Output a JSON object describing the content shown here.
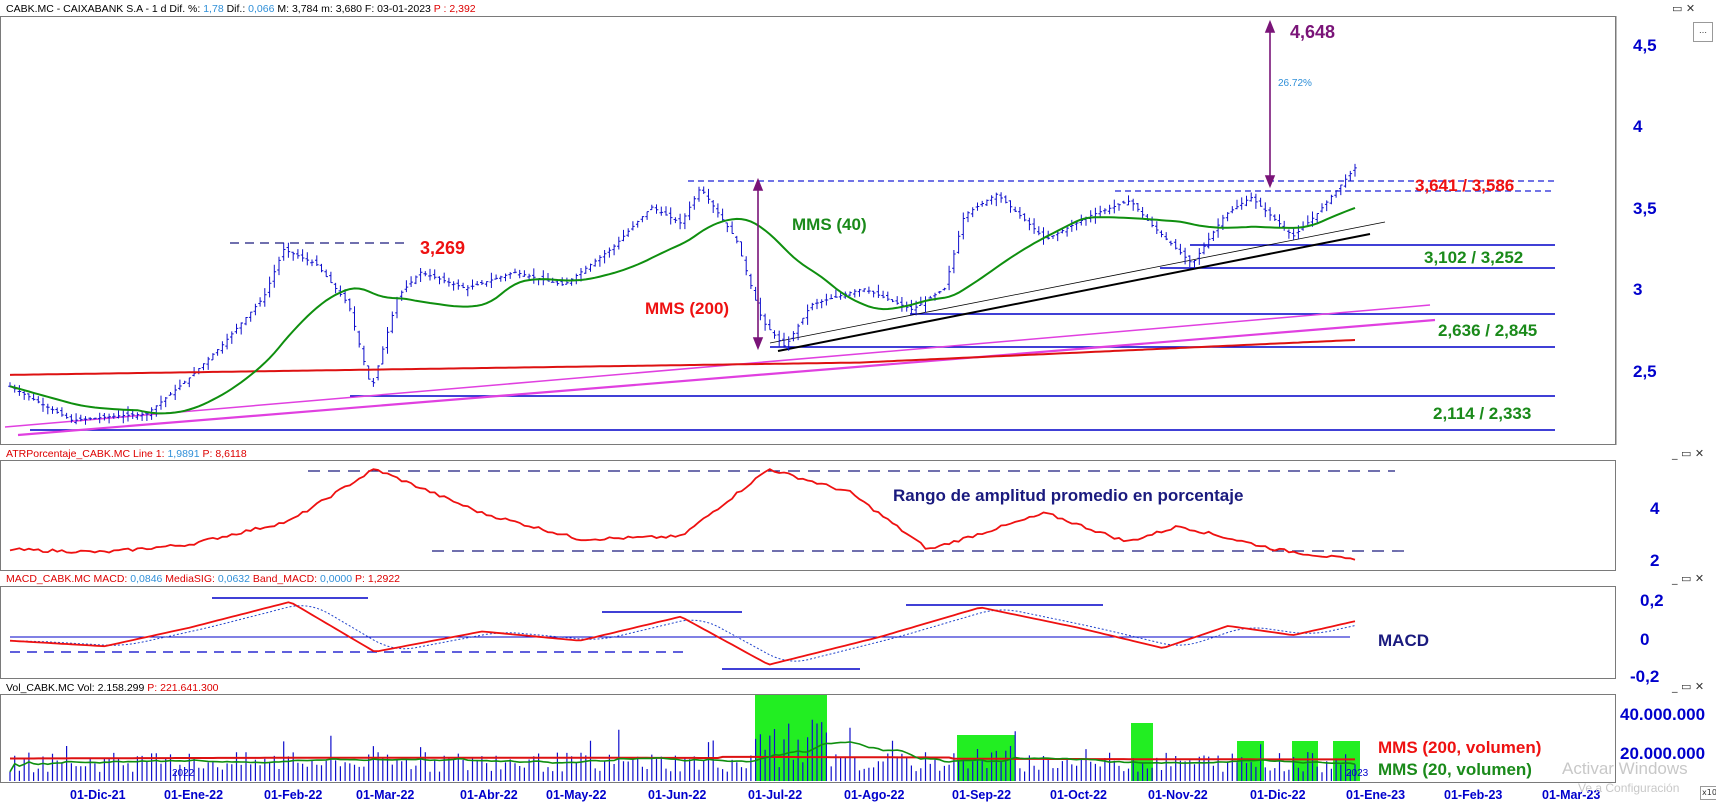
{
  "panels": {
    "price": {
      "header": [
        {
          "text": "CABK.MC - CAIXABANK S.A -  1 d  Dif. %: ",
          "color": "#000000"
        },
        {
          "text": "1,78",
          "color": "#2f8fd8"
        },
        {
          "text": "  Dif.: ",
          "color": "#000000"
        },
        {
          "text": "0,066",
          "color": "#2f8fd8"
        },
        {
          "text": "  M: 3,784  m: 3,680  F: 03-01-2023  ",
          "color": "#000000"
        },
        {
          "text": "P : 2,392",
          "color": "#dd0000"
        }
      ],
      "ticks": [
        "4,5",
        "4",
        "3,5",
        "3",
        "2,5"
      ],
      "labels": {
        "target": "4,648",
        "target_pct": "26.72%",
        "level_3269": "3,269",
        "mms40": "MMS (40)",
        "mms200": "MMS (200)",
        "zone1": "3,641 / 3,586",
        "zone2": "3,102 / 3,252",
        "zone3": "2,636 / 2,845",
        "zone4": "2,114 / 2,333"
      }
    },
    "atr": {
      "header": [
        {
          "text": "ATRPorcentaje_CABK.MC  Line 1: ",
          "color": "#dd0000"
        },
        {
          "text": "1,9891",
          "color": "#2f8fd8"
        },
        {
          "text": "  P: 8,6118",
          "color": "#dd0000"
        }
      ],
      "ticks": [
        "4",
        "2"
      ],
      "annotation": "Rango de amplitud promedio en porcentaje"
    },
    "macd": {
      "header": [
        {
          "text": "MACD_CABK.MC  MACD: ",
          "color": "#dd0000"
        },
        {
          "text": "0,0846",
          "color": "#2f8fd8"
        },
        {
          "text": "  MediaSIG: ",
          "color": "#dd0000"
        },
        {
          "text": "0,0632",
          "color": "#2f8fd8"
        },
        {
          "text": "  Band_MACD: ",
          "color": "#dd0000"
        },
        {
          "text": "0,0000",
          "color": "#2f8fd8"
        },
        {
          "text": "  P: 1,2922",
          "color": "#dd0000"
        }
      ],
      "ticks": [
        "0,2",
        "0",
        "-0,2"
      ],
      "annotation": "MACD"
    },
    "volume": {
      "header": [
        {
          "text": "Vol_CABK.MC  Vol: 2.158.299  ",
          "color": "#000000"
        },
        {
          "text": "P: 221.641.300",
          "color": "#dd0000"
        }
      ],
      "ticks": [
        "40.000.000",
        "20.000.000"
      ],
      "mms200_label": "MMS (200, volumen)",
      "mms20_label": "MMS (20, volumen)"
    }
  },
  "x_axis": {
    "labels": [
      "01-Dic-21",
      "01-Ene-22",
      "01-Feb-22",
      "01-Mar-22",
      "01-Abr-22",
      "01-May-22",
      "01-Jun-22",
      "01-Jul-22",
      "01-Ago-22",
      "01-Sep-22",
      "01-Oct-22",
      "01-Nov-22",
      "01-Dic-22",
      "01-Ene-23",
      "01-Feb-23",
      "01-Mar-23"
    ],
    "small_labels": [
      "2022",
      "2023"
    ]
  },
  "watermark": {
    "line1": "Activar Windows",
    "line2": "Ve a Configuración"
  },
  "chart_data": [
    {
      "type": "candlestick",
      "symbol": "CABK.MC",
      "name": "CAIXABANK S.A",
      "timeframe": "1 d",
      "y_ticks": [
        2.5,
        3,
        3.5,
        4,
        4.5
      ],
      "approx_path": [
        [
          "2021-11-16",
          2.4
        ],
        [
          "2021-11-25",
          2.3
        ],
        [
          "2021-12-05",
          2.19
        ],
        [
          "2021-12-20",
          2.22
        ],
        [
          "2021-12-28",
          2.23
        ],
        [
          "2022-01-10",
          2.45
        ],
        [
          "2022-01-20",
          2.65
        ],
        [
          "2022-02-02",
          2.95
        ],
        [
          "2022-02-08",
          3.24
        ],
        [
          "2022-02-18",
          3.15
        ],
        [
          "2022-02-28",
          2.9
        ],
        [
          "2022-03-07",
          2.38
        ],
        [
          "2022-03-15",
          2.95
        ],
        [
          "2022-03-22",
          3.1
        ],
        [
          "2022-04-05",
          3.0
        ],
        [
          "2022-04-20",
          3.1
        ],
        [
          "2022-05-05",
          3.02
        ],
        [
          "2022-05-20",
          3.25
        ],
        [
          "2022-06-01",
          3.5
        ],
        [
          "2022-06-10",
          3.4
        ],
        [
          "2022-06-16",
          3.62
        ],
        [
          "2022-06-27",
          3.3
        ],
        [
          "2022-07-05",
          2.8
        ],
        [
          "2022-07-12",
          2.64
        ],
        [
          "2022-07-20",
          2.9
        ],
        [
          "2022-08-05",
          3.0
        ],
        [
          "2022-08-20",
          2.87
        ],
        [
          "2022-08-30",
          3.0
        ],
        [
          "2022-09-05",
          3.45
        ],
        [
          "2022-09-15",
          3.58
        ],
        [
          "2022-09-30",
          3.3
        ],
        [
          "2022-10-14",
          3.45
        ],
        [
          "2022-10-26",
          3.54
        ],
        [
          "2022-11-01",
          3.4
        ],
        [
          "2022-11-14",
          3.15
        ],
        [
          "2022-11-24",
          3.45
        ],
        [
          "2022-12-02",
          3.56
        ],
        [
          "2022-12-15",
          3.32
        ],
        [
          "2022-12-22",
          3.45
        ],
        [
          "2023-01-03",
          3.74
        ]
      ],
      "mms40_label": "MMS (40)",
      "mms200_label": "MMS (200)",
      "levels": [
        3.641,
        3.586,
        3.269,
        3.102,
        3.252,
        2.636,
        2.845,
        2.114,
        2.333
      ],
      "target": 4.648,
      "target_pct": "26.72%"
    },
    {
      "type": "line",
      "name": "ATRPorcentaje_CABK.MC",
      "last": 1.9891,
      "y_ticks": [
        2,
        4
      ],
      "approx_path": [
        [
          "2021-11-16",
          2.4
        ],
        [
          "2021-12-15",
          2.3
        ],
        [
          "2022-01-10",
          2.6
        ],
        [
          "2022-02-10",
          3.5
        ],
        [
          "2022-03-08",
          5.5
        ],
        [
          "2022-04-10",
          3.8
        ],
        [
          "2022-05-10",
          2.8
        ],
        [
          "2022-06-10",
          2.9
        ],
        [
          "2022-07-07",
          5.5
        ],
        [
          "2022-08-01",
          4.6
        ],
        [
          "2022-08-25",
          2.4
        ],
        [
          "2022-09-30",
          3.8
        ],
        [
          "2022-10-25",
          2.7
        ],
        [
          "2022-11-10",
          3.3
        ],
        [
          "2022-12-10",
          2.4
        ],
        [
          "2023-01-03",
          1.99
        ]
      ]
    },
    {
      "type": "line",
      "name": "MACD_CABK.MC",
      "series_values": {
        "MACD": 0.0846,
        "MediaSIG": 0.0632,
        "Band_MACD": 0.0
      },
      "y_ticks": [
        -0.2,
        0,
        0.2
      ],
      "approx_path": [
        [
          "2021-11-16",
          -0.02
        ],
        [
          "2021-12-15",
          -0.05
        ],
        [
          "2022-01-10",
          0.05
        ],
        [
          "2022-02-10",
          0.19
        ],
        [
          "2022-03-08",
          -0.08
        ],
        [
          "2022-04-10",
          0.03
        ],
        [
          "2022-05-10",
          -0.02
        ],
        [
          "2022-06-10",
          0.11
        ],
        [
          "2022-07-07",
          -0.15
        ],
        [
          "2022-08-10",
          0.0
        ],
        [
          "2022-09-10",
          0.16
        ],
        [
          "2022-10-10",
          0.05
        ],
        [
          "2022-11-05",
          -0.06
        ],
        [
          "2022-11-25",
          0.06
        ],
        [
          "2022-12-15",
          0.01
        ],
        [
          "2023-01-03",
          0.085
        ]
      ]
    },
    {
      "type": "bar",
      "name": "Vol_CABK.MC",
      "last": 2158299,
      "y_ticks": [
        20000000,
        40000000
      ],
      "labels": [
        "MMS (200, volumen)",
        "MMS (20, volumen)"
      ]
    }
  ]
}
